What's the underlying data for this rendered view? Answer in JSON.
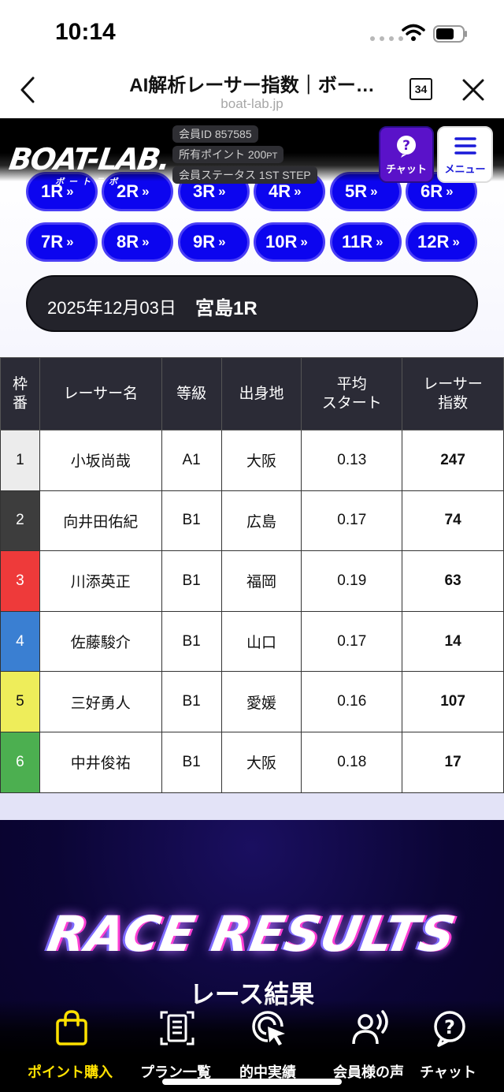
{
  "status_bar": {
    "time": "10:14"
  },
  "browser": {
    "title": "AI解析レーサー指数｜ボー…",
    "url": "boat-lab.jp",
    "tab_count": "34"
  },
  "site_header": {
    "logo": "BOAT-LAB.",
    "logo_sub": "ボートラボ",
    "member_id": "会員ID 857585",
    "points_label": "所有ポイント 200",
    "points_unit": "PT",
    "member_status": "会員ステータス 1ST STEP",
    "chat_label": "チャット",
    "menu_label": "メニュー"
  },
  "races": [
    "1R",
    "2R",
    "3R",
    "4R",
    "5R",
    "6R",
    "7R",
    "8R",
    "9R",
    "10R",
    "11R",
    "12R"
  ],
  "race_info": {
    "date": "2025年12月03日",
    "name": "宮島1R"
  },
  "table": {
    "headers": [
      "枠\n番",
      "レーサー名",
      "等級",
      "出身地",
      "平均\nスタート",
      "レーサー\n指数"
    ],
    "rows": [
      {
        "frame": "1",
        "color": "#ececec",
        "text_color": "#111111",
        "name": "小坂尚哉",
        "grade": "A1",
        "origin": "大阪",
        "avg_start": "0.13",
        "index": "247"
      },
      {
        "frame": "2",
        "color": "#3d3d3d",
        "text_color": "#ffffff",
        "name": "向井田佑紀",
        "grade": "B1",
        "origin": "広島",
        "avg_start": "0.17",
        "index": "74"
      },
      {
        "frame": "3",
        "color": "#ee3a3a",
        "text_color": "#ffffff",
        "name": "川添英正",
        "grade": "B1",
        "origin": "福岡",
        "avg_start": "0.19",
        "index": "63"
      },
      {
        "frame": "4",
        "color": "#3a7fd2",
        "text_color": "#ffffff",
        "name": "佐藤駿介",
        "grade": "B1",
        "origin": "山口",
        "avg_start": "0.17",
        "index": "14"
      },
      {
        "frame": "5",
        "color": "#eeed5a",
        "text_color": "#111111",
        "name": "三好勇人",
        "grade": "B1",
        "origin": "愛媛",
        "avg_start": "0.16",
        "index": "107"
      },
      {
        "frame": "6",
        "color": "#4caf50",
        "text_color": "#ffffff",
        "name": "中井俊祐",
        "grade": "B1",
        "origin": "大阪",
        "avg_start": "0.18",
        "index": "17"
      }
    ]
  },
  "results": {
    "title": "RACE RESULTS",
    "subtitle": "レース結果"
  },
  "bottom_nav": [
    {
      "label": "ポイント購入",
      "icon": "shopping-bag-icon",
      "active": true
    },
    {
      "label": "プラン一覧",
      "icon": "document-icon",
      "active": false
    },
    {
      "label": "的中実績",
      "icon": "target-cursor-icon",
      "active": false
    },
    {
      "label": "会員様の声",
      "icon": "speaking-person-icon",
      "active": false
    },
    {
      "label": "チャット",
      "icon": "help-chat-icon",
      "active": false
    }
  ],
  "colors": {
    "race_button": "#0c05ef",
    "chat_button": "#5a12c9",
    "nav_active": "#ffe100",
    "table_header": "#2b2b36"
  }
}
